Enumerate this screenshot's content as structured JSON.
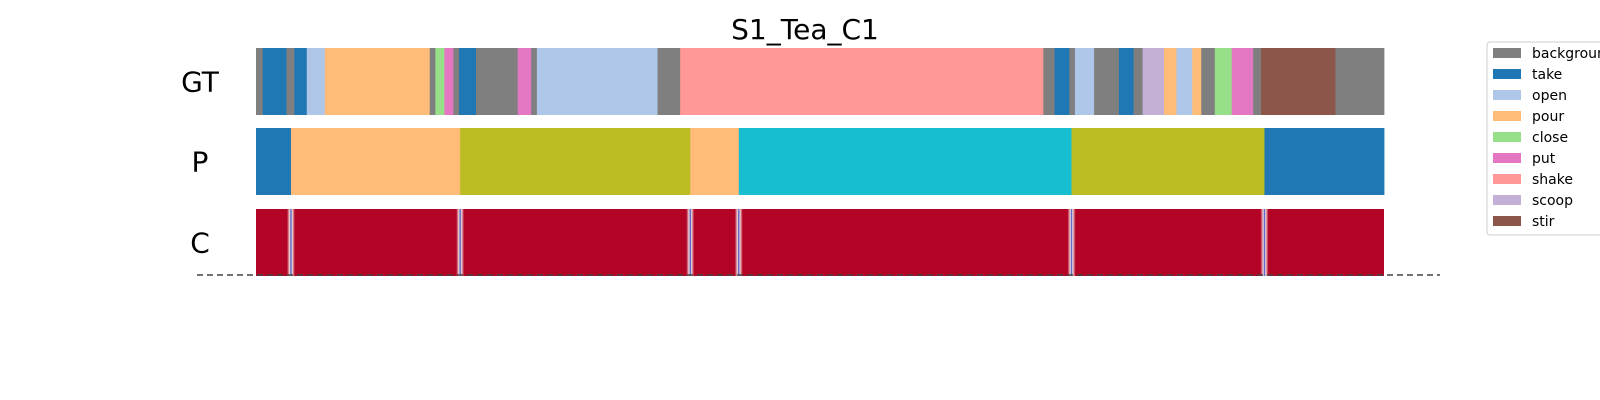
{
  "chart_data": {
    "type": "segmentation-timeline",
    "title": "S1_Tea_C1",
    "rows": [
      {
        "label": "GT",
        "kind": "segments",
        "segments": [
          {
            "start": 0.0,
            "end": 0.6,
            "action": "background"
          },
          {
            "start": 0.6,
            "end": 2.7,
            "action": "take"
          },
          {
            "start": 2.7,
            "end": 3.4,
            "action": "background"
          },
          {
            "start": 3.4,
            "end": 4.5,
            "action": "take"
          },
          {
            "start": 4.5,
            "end": 6.1,
            "action": "open"
          },
          {
            "start": 6.1,
            "end": 15.4,
            "action": "pour"
          },
          {
            "start": 15.4,
            "end": 15.9,
            "action": "background"
          },
          {
            "start": 15.9,
            "end": 16.7,
            "action": "close"
          },
          {
            "start": 16.7,
            "end": 17.5,
            "action": "put"
          },
          {
            "start": 17.5,
            "end": 18.0,
            "action": "background"
          },
          {
            "start": 18.0,
            "end": 19.5,
            "action": "take"
          },
          {
            "start": 19.5,
            "end": 23.2,
            "action": "background"
          },
          {
            "start": 23.2,
            "end": 24.4,
            "action": "put"
          },
          {
            "start": 24.4,
            "end": 24.9,
            "action": "background"
          },
          {
            "start": 24.9,
            "end": 35.6,
            "action": "open"
          },
          {
            "start": 35.6,
            "end": 37.6,
            "action": "background"
          },
          {
            "start": 37.6,
            "end": 69.8,
            "action": "shake"
          },
          {
            "start": 69.8,
            "end": 70.8,
            "action": "background"
          },
          {
            "start": 70.8,
            "end": 72.1,
            "action": "take"
          },
          {
            "start": 72.1,
            "end": 72.6,
            "action": "background"
          },
          {
            "start": 72.6,
            "end": 74.3,
            "action": "open"
          },
          {
            "start": 74.3,
            "end": 76.5,
            "action": "background"
          },
          {
            "start": 76.5,
            "end": 77.8,
            "action": "take"
          },
          {
            "start": 77.8,
            "end": 78.6,
            "action": "background"
          },
          {
            "start": 78.6,
            "end": 80.5,
            "action": "scoop"
          },
          {
            "start": 80.5,
            "end": 81.6,
            "action": "pour"
          },
          {
            "start": 81.6,
            "end": 83.0,
            "action": "open"
          },
          {
            "start": 83.0,
            "end": 83.8,
            "action": "pour"
          },
          {
            "start": 83.8,
            "end": 85.0,
            "action": "background"
          },
          {
            "start": 85.0,
            "end": 86.5,
            "action": "close"
          },
          {
            "start": 86.5,
            "end": 88.4,
            "action": "put"
          },
          {
            "start": 88.4,
            "end": 89.1,
            "action": "background"
          },
          {
            "start": 89.1,
            "end": 95.7,
            "action": "stir"
          },
          {
            "start": 95.7,
            "end": 100.0,
            "action": "background"
          }
        ]
      },
      {
        "label": "P",
        "kind": "segments",
        "segments": [
          {
            "start": 0.0,
            "end": 3.1,
            "action": "take"
          },
          {
            "start": 3.1,
            "end": 18.1,
            "action": "pour"
          },
          {
            "start": 18.1,
            "end": 38.5,
            "action": ""
          },
          {
            "start": 38.5,
            "end": 42.8,
            "action": "pour"
          },
          {
            "start": 42.8,
            "end": 72.3,
            "action": ""
          },
          {
            "start": 72.3,
            "end": 89.4,
            "action": ""
          },
          {
            "start": 89.4,
            "end": 100.0,
            "action": "take"
          }
        ]
      },
      {
        "label": "C",
        "kind": "confidence",
        "boundaries": [
          3.1,
          18.1,
          38.5,
          42.8,
          72.3,
          89.4
        ]
      }
    ],
    "legend": {
      "placement": "right",
      "entries": [
        {
          "label": "background",
          "color": "#7f7f7f"
        },
        {
          "label": "take",
          "color": "#1f77b4"
        },
        {
          "label": "open",
          "color": "#aec7e8"
        },
        {
          "label": "pour",
          "color": "#ffbb78"
        },
        {
          "label": "close",
          "color": "#98df8a"
        },
        {
          "label": "put",
          "color": "#e377c2"
        },
        {
          "label": "shake",
          "color": "#ff9896"
        },
        {
          "label": "scoop",
          "color": "#c5b0d5"
        },
        {
          "label": "stir",
          "color": "#8c564b"
        }
      ]
    },
    "extra_colors": {
      "olive": "#bcbd22",
      "cyan": "#17becf",
      "confidence_high": "#b40426",
      "confidence_low": "#3b4cc0"
    },
    "x_range": [
      0,
      100
    ]
  }
}
